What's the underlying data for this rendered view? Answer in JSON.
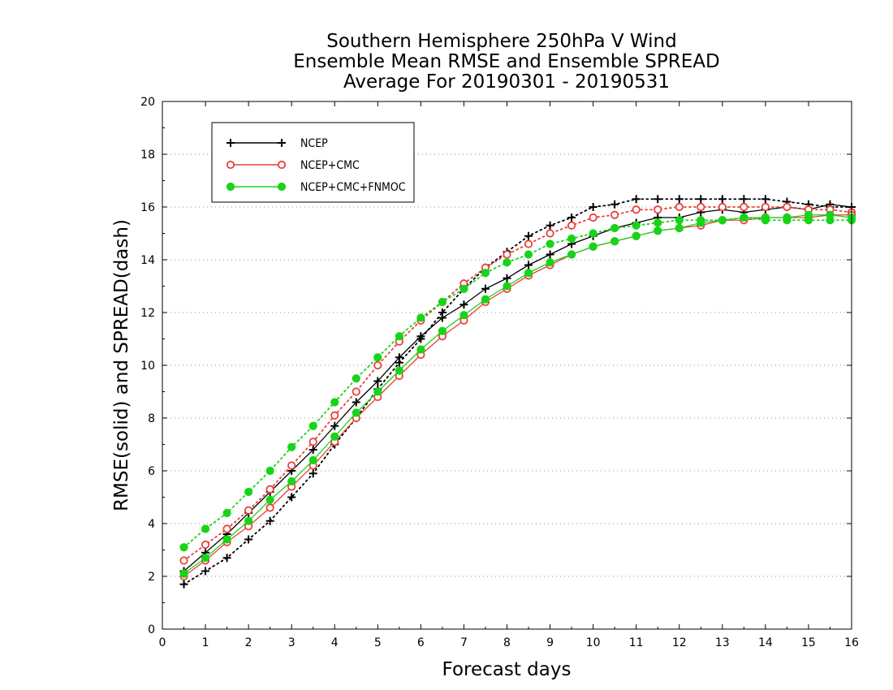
{
  "chart_data": {
    "type": "line",
    "title": [
      "Southern Hemisphere 250hPa V Wind",
      "Ensemble Mean RMSE and Ensemble SPREAD",
      "Average For 20190301 - 20190531"
    ],
    "xlabel": "Forecast days",
    "ylabel": "RMSE(solid) and SPREAD(dash)",
    "xlim": [
      0,
      16
    ],
    "ylim": [
      0,
      20
    ],
    "xticks": [
      0,
      1,
      2,
      3,
      4,
      5,
      6,
      7,
      8,
      9,
      10,
      11,
      12,
      13,
      14,
      15,
      16
    ],
    "yticks": [
      0,
      2,
      4,
      6,
      8,
      10,
      12,
      14,
      16,
      18,
      20
    ],
    "grid": "horizontal-dotted",
    "legend": "top-left",
    "x": [
      0.5,
      1,
      1.5,
      2,
      2.5,
      3,
      3.5,
      4,
      4.5,
      5,
      5.5,
      6,
      6.5,
      7,
      7.5,
      8,
      8.5,
      9,
      9.5,
      10,
      10.5,
      11,
      11.5,
      12,
      12.5,
      13,
      13.5,
      14,
      14.5,
      15,
      15.5,
      16
    ],
    "series": [
      {
        "name": "NCEP",
        "color": "#000000",
        "marker": "plus",
        "rmse": [
          2.2,
          2.9,
          3.6,
          4.4,
          5.2,
          6.0,
          6.8,
          7.7,
          8.6,
          9.4,
          10.3,
          11.1,
          11.8,
          12.3,
          12.9,
          13.3,
          13.8,
          14.2,
          14.6,
          14.9,
          15.2,
          15.4,
          15.6,
          15.6,
          15.8,
          15.9,
          15.8,
          15.9,
          16.0,
          15.9,
          16.1,
          16.0
        ],
        "spread": [
          1.7,
          2.2,
          2.7,
          3.4,
          4.1,
          5.0,
          5.9,
          7.0,
          8.0,
          9.1,
          10.1,
          11.0,
          12.0,
          12.9,
          13.7,
          14.3,
          14.9,
          15.3,
          15.6,
          16.0,
          16.1,
          16.3,
          16.3,
          16.3,
          16.3,
          16.3,
          16.3,
          16.3,
          16.2,
          16.1,
          16.0,
          16.0
        ]
      },
      {
        "name": "NCEP+CMC",
        "color": "#e8403a",
        "marker": "open-circle",
        "rmse": [
          2.0,
          2.6,
          3.3,
          3.9,
          4.6,
          5.4,
          6.2,
          7.1,
          8.0,
          8.8,
          9.6,
          10.4,
          11.1,
          11.7,
          12.4,
          12.9,
          13.4,
          13.8,
          14.2,
          14.5,
          14.7,
          14.9,
          15.1,
          15.2,
          15.3,
          15.5,
          15.5,
          15.6,
          15.6,
          15.6,
          15.7,
          15.7
        ],
        "spread": [
          2.6,
          3.2,
          3.8,
          4.5,
          5.3,
          6.2,
          7.1,
          8.1,
          9.0,
          10.0,
          10.9,
          11.7,
          12.4,
          13.1,
          13.7,
          14.2,
          14.6,
          15.0,
          15.3,
          15.6,
          15.7,
          15.9,
          15.9,
          16.0,
          16.0,
          16.0,
          16.0,
          16.0,
          16.0,
          15.9,
          15.9,
          15.8
        ]
      },
      {
        "name": "NCEP+CMC+FNMOC",
        "color": "#18d418",
        "marker": "filled-circle",
        "rmse": [
          2.1,
          2.7,
          3.4,
          4.1,
          4.9,
          5.6,
          6.4,
          7.3,
          8.2,
          9.0,
          9.8,
          10.6,
          11.3,
          11.9,
          12.5,
          13.0,
          13.5,
          13.9,
          14.2,
          14.5,
          14.7,
          14.9,
          15.1,
          15.2,
          15.4,
          15.5,
          15.6,
          15.6,
          15.6,
          15.7,
          15.7,
          15.6
        ],
        "spread": [
          3.1,
          3.8,
          4.4,
          5.2,
          6.0,
          6.9,
          7.7,
          8.6,
          9.5,
          10.3,
          11.1,
          11.8,
          12.4,
          12.9,
          13.5,
          13.9,
          14.2,
          14.6,
          14.8,
          15.0,
          15.2,
          15.3,
          15.4,
          15.5,
          15.5,
          15.5,
          15.6,
          15.5,
          15.5,
          15.5,
          15.5,
          15.5
        ]
      }
    ]
  }
}
